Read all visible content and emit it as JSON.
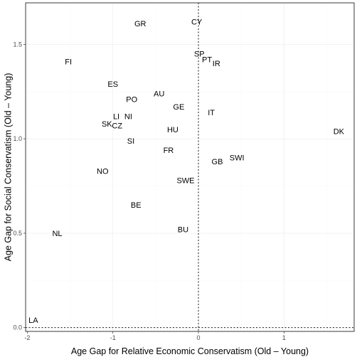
{
  "chart_data": {
    "type": "scatter",
    "title": "",
    "xlabel": "Age Gap for Relative Economic Conservatism (Old – Young)",
    "ylabel": "Age Gap for Social Conservatism (Old – Young)",
    "xlim": [
      -2.02,
      1.82
    ],
    "ylim": [
      -0.02,
      1.72
    ],
    "x_ticks": [
      -2,
      -1,
      0,
      1
    ],
    "x_tick_labels": [
      "-2",
      "-1",
      "0",
      "1"
    ],
    "y_ticks": [
      0.0,
      0.5,
      1.0,
      1.5
    ],
    "y_tick_labels": [
      "0.0",
      "0.5",
      "1.0",
      "1.5"
    ],
    "grid": true,
    "reference_lines": {
      "x": 0,
      "y": 0
    },
    "points": [
      {
        "label": "CY",
        "x": -0.02,
        "y": 1.62
      },
      {
        "label": "GR",
        "x": -0.68,
        "y": 1.61
      },
      {
        "label": "SP",
        "x": 0.01,
        "y": 1.45
      },
      {
        "label": "PT",
        "x": 0.1,
        "y": 1.42
      },
      {
        "label": "IR",
        "x": 0.21,
        "y": 1.4
      },
      {
        "label": "FI",
        "x": -1.52,
        "y": 1.41
      },
      {
        "label": "ES",
        "x": -1.0,
        "y": 1.29
      },
      {
        "label": "AU",
        "x": -0.46,
        "y": 1.24
      },
      {
        "label": "PO",
        "x": -0.78,
        "y": 1.21
      },
      {
        "label": "GE",
        "x": -0.23,
        "y": 1.17
      },
      {
        "label": "IT",
        "x": 0.15,
        "y": 1.14
      },
      {
        "label": "LI",
        "x": -0.96,
        "y": 1.12
      },
      {
        "label": "NI",
        "x": -0.82,
        "y": 1.12
      },
      {
        "label": "SK",
        "x": -1.07,
        "y": 1.08
      },
      {
        "label": "CZ",
        "x": -0.95,
        "y": 1.07
      },
      {
        "label": "HU",
        "x": -0.3,
        "y": 1.05
      },
      {
        "label": "DK",
        "x": 1.64,
        "y": 1.04
      },
      {
        "label": "SI",
        "x": -0.79,
        "y": 0.99
      },
      {
        "label": "FR",
        "x": -0.35,
        "y": 0.94
      },
      {
        "label": "SWI",
        "x": 0.45,
        "y": 0.9
      },
      {
        "label": "GB",
        "x": 0.22,
        "y": 0.88
      },
      {
        "label": "NO",
        "x": -1.12,
        "y": 0.83
      },
      {
        "label": "SWE",
        "x": -0.15,
        "y": 0.78
      },
      {
        "label": "BE",
        "x": -0.73,
        "y": 0.65
      },
      {
        "label": "BU",
        "x": -0.18,
        "y": 0.52
      },
      {
        "label": "NL",
        "x": -1.65,
        "y": 0.5
      },
      {
        "label": "LA",
        "x": -1.93,
        "y": 0.04
      }
    ]
  }
}
